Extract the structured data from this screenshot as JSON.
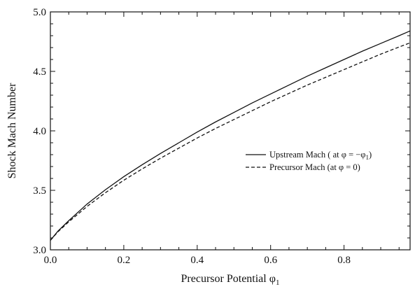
{
  "chart_data": {
    "type": "line",
    "xlabel": "Precursor Potential φ",
    "xlabel_sub": "1",
    "ylabel": "Shock Mach Number",
    "xlim": [
      0.0,
      0.98
    ],
    "ylim": [
      3.0,
      5.0
    ],
    "x_ticks": [
      0.0,
      0.2,
      0.4,
      0.6,
      0.8
    ],
    "x_tick_labels": [
      "0.0",
      "0.2",
      "0.4",
      "0.6",
      "0.8"
    ],
    "y_ticks": [
      3.0,
      3.5,
      4.0,
      4.5,
      5.0
    ],
    "y_tick_labels": [
      "3.0",
      "3.5",
      "4.0",
      "4.5",
      "5.0"
    ],
    "grid": false,
    "legend_position": "center-right",
    "series": [
      {
        "name": "Upstream Mach ( at  φ = −φ",
        "name_sub": "1",
        "name_tail": ")",
        "line_style": "solid",
        "color": "#111111",
        "x": [
          0.0,
          0.02,
          0.05,
          0.1,
          0.15,
          0.2,
          0.25,
          0.3,
          0.35,
          0.4,
          0.45,
          0.5,
          0.55,
          0.6,
          0.65,
          0.7,
          0.75,
          0.8,
          0.85,
          0.9,
          0.95,
          0.98
        ],
        "y": [
          3.08,
          3.155,
          3.245,
          3.385,
          3.505,
          3.615,
          3.715,
          3.81,
          3.9,
          3.99,
          4.075,
          4.155,
          4.235,
          4.31,
          4.385,
          4.46,
          4.53,
          4.6,
          4.67,
          4.735,
          4.8,
          4.84
        ]
      },
      {
        "name": "Precursor Mach (at  φ = 0)",
        "name_sub": "",
        "name_tail": "",
        "line_style": "dashed",
        "color": "#111111",
        "x": [
          0.0,
          0.02,
          0.05,
          0.1,
          0.15,
          0.2,
          0.25,
          0.3,
          0.35,
          0.4,
          0.45,
          0.5,
          0.55,
          0.6,
          0.65,
          0.7,
          0.75,
          0.8,
          0.85,
          0.9,
          0.95,
          0.98
        ],
        "y": [
          3.08,
          3.15,
          3.235,
          3.365,
          3.48,
          3.585,
          3.68,
          3.77,
          3.855,
          3.94,
          4.02,
          4.095,
          4.17,
          4.245,
          4.315,
          4.385,
          4.45,
          4.515,
          4.58,
          4.645,
          4.705,
          4.74
        ]
      }
    ]
  }
}
